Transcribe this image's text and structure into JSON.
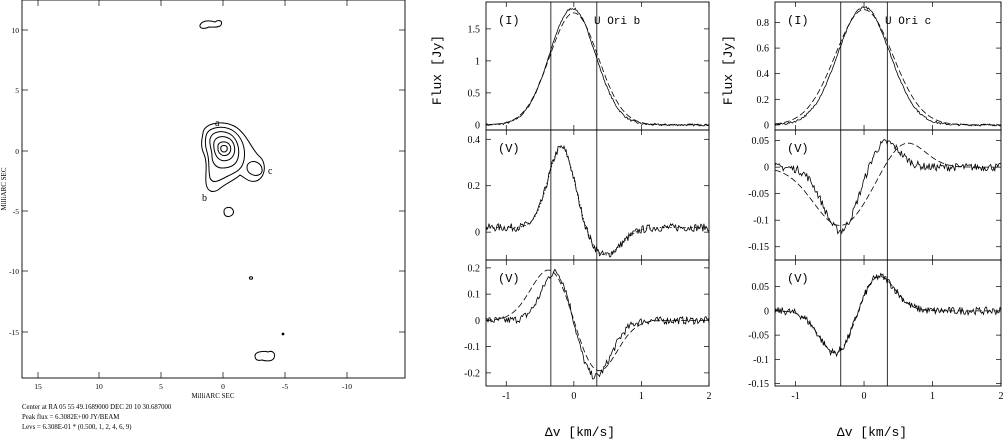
{
  "contour_map": {
    "y_axis_label": "MilliARC SEC",
    "x_axis_label": "MilliARC SEC",
    "x_ticks": [
      "15",
      "10",
      "5",
      "0",
      "-5",
      "-10"
    ],
    "y_ticks": [
      "10",
      "5",
      "0",
      "-5",
      "-10",
      "-15"
    ],
    "component_labels": [
      "a",
      "b",
      "c"
    ],
    "caption": [
      "Center at RA 05 55 49.1689000  DEC 20 10 30.687000",
      "Peak flux = 6.3082E+00 JY/BEAM",
      "Levs = 6.308E-01 * (0.500, 1, 2, 4, 6, 9)"
    ],
    "contour_levels": [
      0.5,
      1,
      2,
      4,
      6,
      9
    ]
  },
  "spectra": {
    "y_axis_label": "Flux [Jy]",
    "x_axis_label": "Δv [km/s]",
    "x_ticks": [
      "-1",
      "0",
      "1",
      "2"
    ],
    "columns": [
      {
        "title": "U Ori b",
        "panels": [
          {
            "stokes": "(I)",
            "ticks": [
              "1.5",
              "1",
              "0.5",
              "0"
            ]
          },
          {
            "stokes": "(V)",
            "ticks": [
              "0.4",
              "0.2",
              "0"
            ]
          },
          {
            "stokes": "(V)",
            "ticks": [
              "0.2",
              "0.1",
              "0",
              "-0.1",
              "-0.2"
            ]
          }
        ]
      },
      {
        "title": "U Ori c",
        "panels": [
          {
            "stokes": "(I)",
            "ticks": [
              "0.8",
              "0.6",
              "0.4",
              "0.2",
              "0"
            ]
          },
          {
            "stokes": "(V)",
            "ticks": [
              "0.05",
              "0",
              "-0.05",
              "-0.1",
              "-0.15"
            ]
          },
          {
            "stokes": "(V)",
            "ticks": [
              "0.05",
              "0",
              "-0.05",
              "-0.1",
              "-0.15"
            ]
          }
        ]
      }
    ]
  }
}
